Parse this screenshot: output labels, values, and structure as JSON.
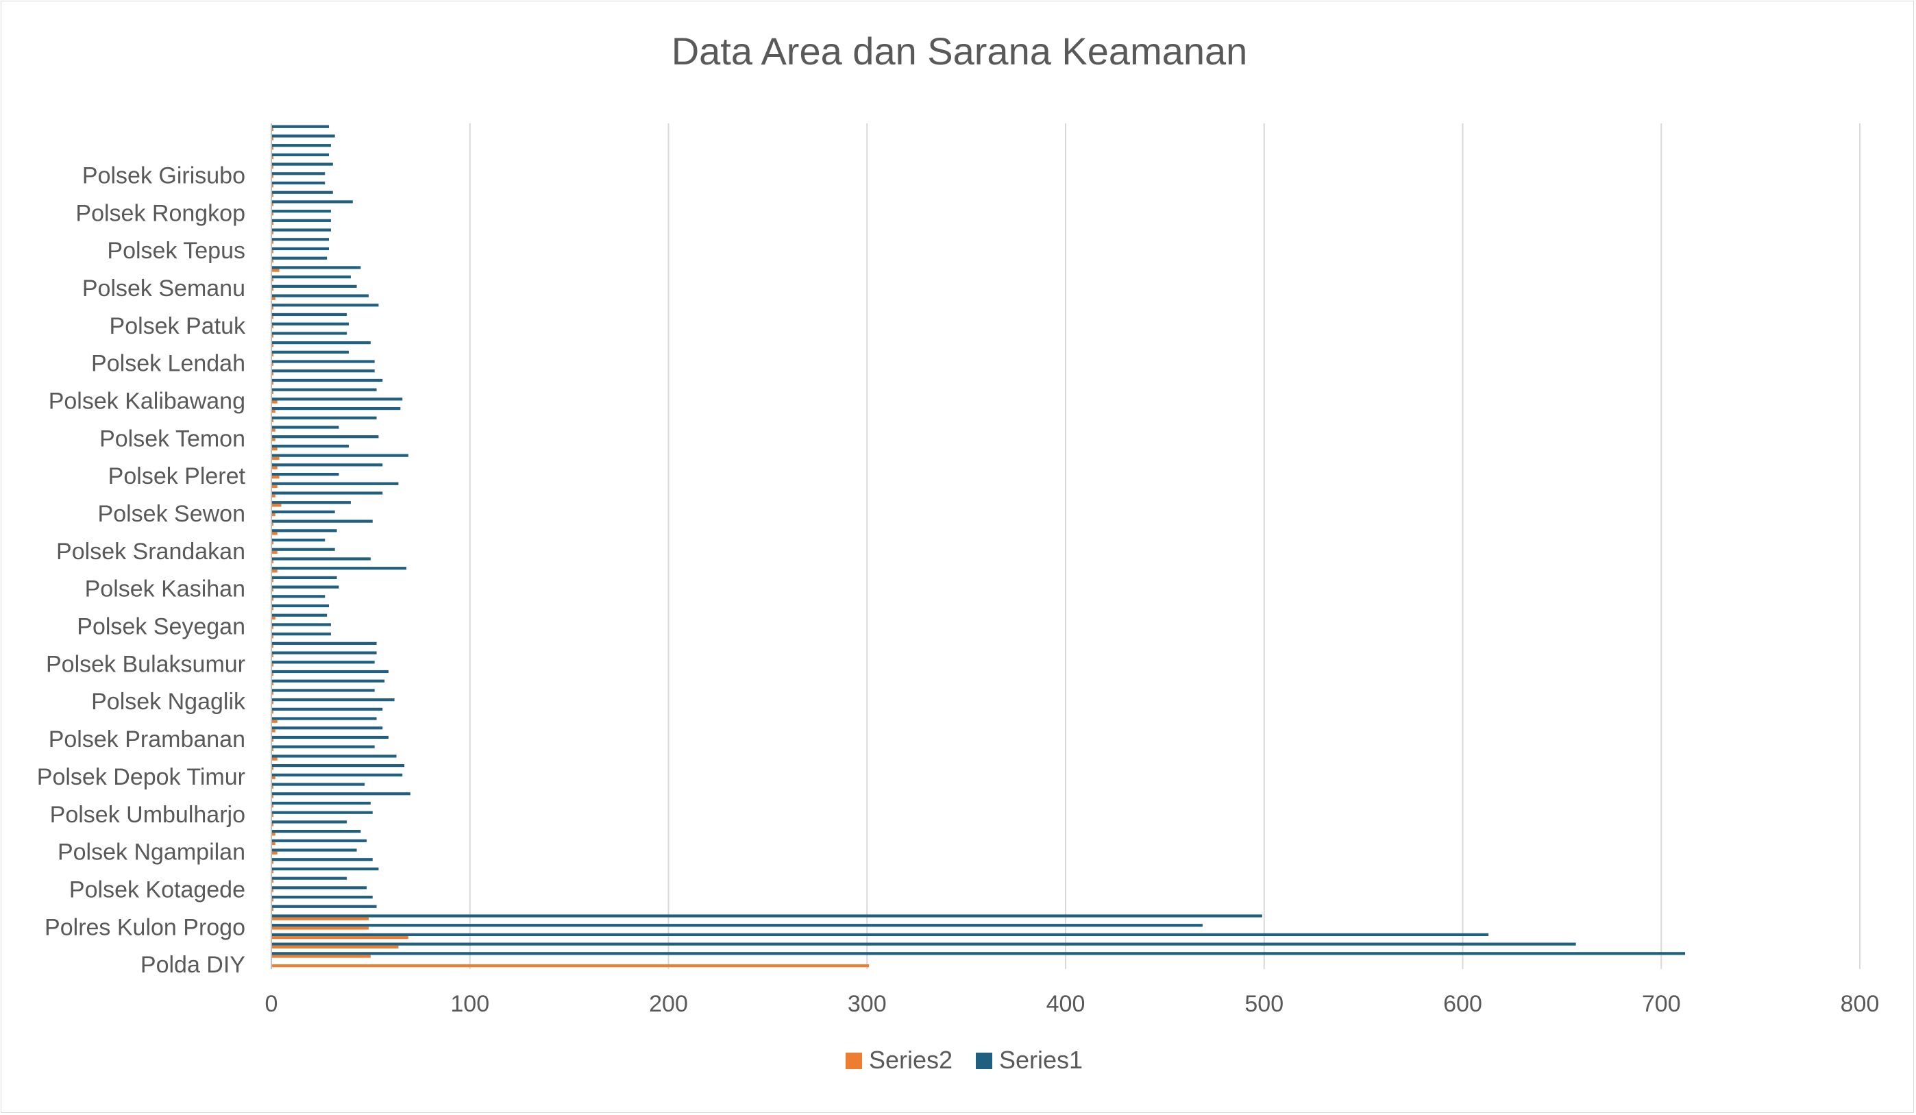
{
  "chart_data": {
    "type": "bar",
    "orientation": "horizontal",
    "title": "Data Area dan Sarana Keamanan",
    "xlabel": "",
    "ylabel": "",
    "xlim": [
      0,
      800
    ],
    "xticks": [
      0,
      100,
      200,
      300,
      400,
      500,
      600,
      700,
      800
    ],
    "grid": true,
    "legend_position": "bottom",
    "category_labels": [
      "Polda DIY",
      "Polres Kulon Progo",
      "Polsek Kotagede",
      "Polsek Ngampilan",
      "Polsek Umbulharjo",
      "Polsek Depok Timur",
      "Polsek Prambanan",
      "Polsek Ngaglik",
      "Polsek Bulaksumur",
      "Polsek Seyegan",
      "Polsek Kasihan",
      "Polsek Srandakan",
      "Polsek Sewon",
      "Polsek Pleret",
      "Polsek Temon",
      "Polsek Kalibawang",
      "Polsek Lendah",
      "Polsek Patuk",
      "Polsek Semanu",
      "Polsek Tepus",
      "Polsek Rongkop",
      "Polsek Girisubo"
    ],
    "label_every": 4,
    "series": [
      {
        "name": "Series1",
        "color": "#1f5f80",
        "values": [
          0,
          712,
          657,
          613,
          469,
          499,
          53,
          51,
          48,
          38,
          54,
          51,
          43,
          48,
          45,
          38,
          51,
          50,
          70,
          47,
          66,
          67,
          63,
          52,
          59,
          56,
          53,
          56,
          62,
          52,
          57,
          59,
          52,
          53,
          53,
          30,
          30,
          28,
          29,
          27,
          34,
          33,
          68,
          50,
          32,
          27,
          33,
          51,
          32,
          40,
          56,
          64,
          34,
          56,
          69,
          39,
          54,
          34,
          53,
          65,
          66,
          53,
          56,
          52,
          52,
          39,
          50,
          38,
          39,
          38,
          54,
          49,
          43,
          40,
          45,
          28,
          29,
          29,
          30,
          30,
          30,
          41,
          31,
          27,
          27,
          31,
          29,
          30,
          32,
          29
        ]
      },
      {
        "name": "Series2",
        "color": "#ed7d31",
        "values": [
          301,
          50,
          64,
          69,
          49,
          49,
          1,
          1,
          1,
          1,
          1,
          1,
          3,
          2,
          2,
          1,
          1,
          1,
          1,
          1,
          2,
          1,
          3,
          1,
          1,
          2,
          3,
          1,
          1,
          1,
          1,
          1,
          1,
          1,
          1,
          1,
          1,
          2,
          1,
          1,
          1,
          1,
          3,
          1,
          3,
          1,
          3,
          1,
          2,
          5,
          2,
          3,
          4,
          3,
          4,
          3,
          2,
          2,
          1,
          2,
          3,
          1,
          1,
          1,
          1,
          1,
          1,
          1,
          1,
          1,
          1,
          2,
          1,
          1,
          4,
          1,
          1,
          1,
          1,
          1,
          1,
          1,
          1,
          1,
          1,
          1,
          1,
          1,
          1,
          1
        ]
      }
    ]
  }
}
